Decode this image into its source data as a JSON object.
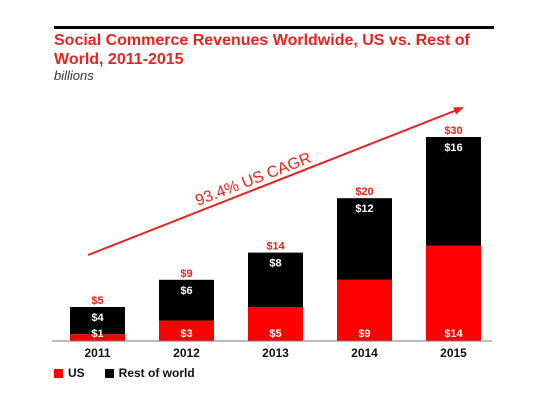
{
  "chart_data": {
    "type": "bar",
    "stacked": true,
    "title": "Social Commerce Revenues Worldwide, US vs. Rest of World, 2011-2015",
    "subtitle": "billions",
    "categories": [
      "2011",
      "2012",
      "2013",
      "2014",
      "2015"
    ],
    "series": [
      {
        "name": "US",
        "color": "#ff0000",
        "values": [
          1,
          3,
          5,
          9,
          14
        ],
        "labels": [
          "$1",
          "$3",
          "$5",
          "$9",
          "$14"
        ]
      },
      {
        "name": "Rest of world",
        "color": "#000000",
        "values": [
          4,
          6,
          8,
          12,
          16
        ],
        "labels": [
          "$4",
          "$6",
          "$8",
          "$12",
          "$16"
        ]
      }
    ],
    "totals": [
      5,
      9,
      14,
      20,
      30
    ],
    "total_labels": [
      "$5",
      "$9",
      "$14",
      "$20",
      "$30"
    ],
    "annotation": "93.4% US CAGR",
    "ylim": [
      0,
      30
    ],
    "legend_position": "bottom-left",
    "grid": false
  }
}
